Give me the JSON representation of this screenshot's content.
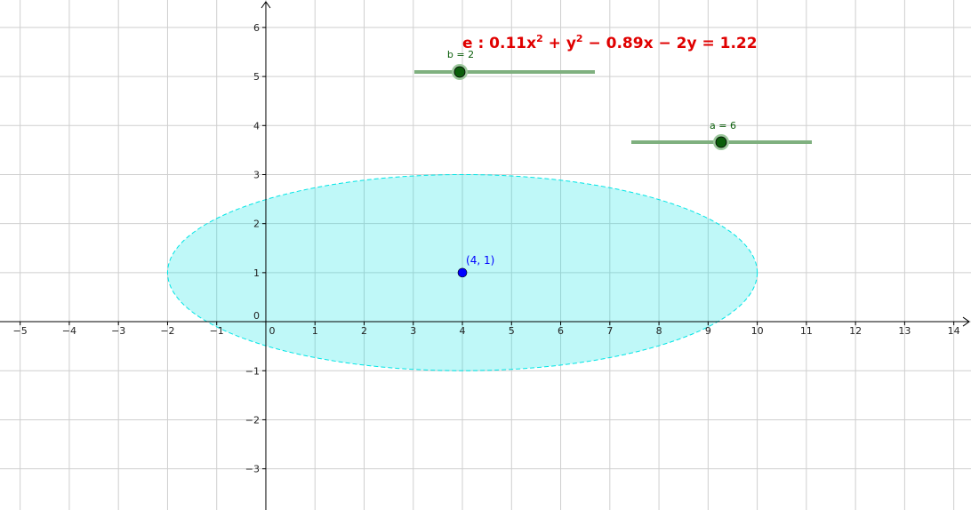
{
  "graphics": {
    "xlim": [
      -5.41,
      14.35
    ],
    "ylim": [
      -3.84,
      6.56
    ],
    "xticks": [
      {
        "value": -5,
        "label": "−5"
      },
      {
        "value": -4,
        "label": "−4"
      },
      {
        "value": -3,
        "label": "−3"
      },
      {
        "value": -2,
        "label": "−2"
      },
      {
        "value": -1,
        "label": "−1"
      },
      0,
      1,
      2,
      3,
      4,
      5,
      6,
      7,
      8,
      9,
      10,
      11,
      12,
      13,
      14
    ],
    "yticks": [
      {
        "value": -3,
        "label": "−3"
      },
      {
        "value": -2,
        "label": "−2"
      },
      {
        "value": -1,
        "label": "−1"
      },
      0,
      1,
      2,
      3,
      4,
      5,
      6
    ],
    "ellipse": {
      "center": [
        4,
        1
      ],
      "a": 6,
      "b": 2,
      "color": "#00e5e5"
    },
    "point": {
      "label": "(4, 1)",
      "color": "#0000ff"
    },
    "equation": [
      "e : 0.11x",
      "2",
      " + y",
      "2",
      " − 0.89x − 2y = 1.22"
    ],
    "sliders": [
      {
        "label": "b = 2"
      },
      {
        "label": "a = 6"
      }
    ]
  }
}
